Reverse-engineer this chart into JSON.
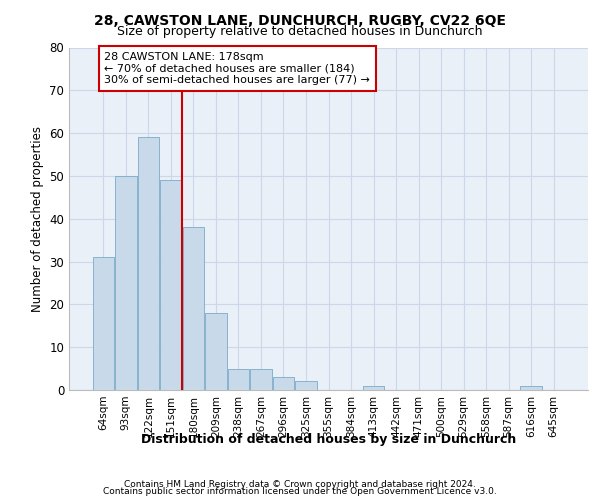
{
  "title1": "28, CAWSTON LANE, DUNCHURCH, RUGBY, CV22 6QE",
  "title2": "Size of property relative to detached houses in Dunchurch",
  "xlabel": "Distribution of detached houses by size in Dunchurch",
  "ylabel": "Number of detached properties",
  "bar_color": "#c8daea",
  "bar_edge_color": "#7aaac8",
  "vline_color": "#cc0000",
  "annotation_text": "28 CAWSTON LANE: 178sqm\n← 70% of detached houses are smaller (184)\n30% of semi-detached houses are larger (77) →",
  "annotation_box_color": "#cc0000",
  "categories": [
    "64sqm",
    "93sqm",
    "122sqm",
    "151sqm",
    "180sqm",
    "209sqm",
    "238sqm",
    "267sqm",
    "296sqm",
    "325sqm",
    "355sqm",
    "384sqm",
    "413sqm",
    "442sqm",
    "471sqm",
    "500sqm",
    "529sqm",
    "558sqm",
    "587sqm",
    "616sqm",
    "645sqm"
  ],
  "values": [
    31,
    50,
    59,
    49,
    38,
    18,
    5,
    5,
    3,
    2,
    0,
    0,
    1,
    0,
    0,
    0,
    0,
    0,
    0,
    1,
    0
  ],
  "ylim": [
    0,
    80
  ],
  "yticks": [
    0,
    10,
    20,
    30,
    40,
    50,
    60,
    70,
    80
  ],
  "grid_color": "#ccd8e8",
  "background_color": "#eaf0f8",
  "footer1": "Contains HM Land Registry data © Crown copyright and database right 2024.",
  "footer2": "Contains public sector information licensed under the Open Government Licence v3.0."
}
